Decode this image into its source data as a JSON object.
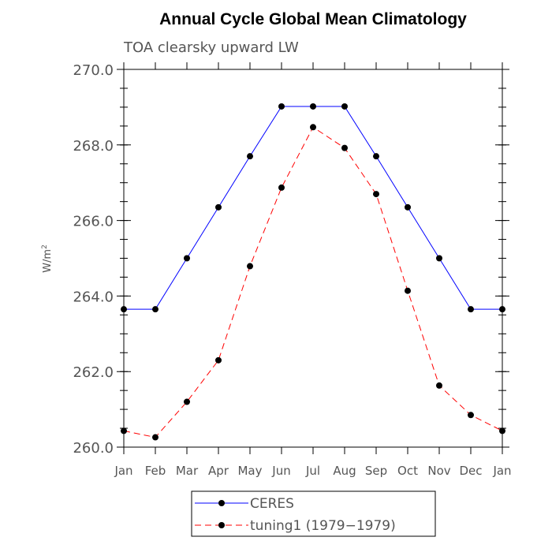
{
  "chart_data": {
    "type": "line",
    "title": "Annual Cycle Global Mean Climatology",
    "subtitle": "TOA clearsky upward LW",
    "ylabel": "W/m",
    "ylabel_sup": "2",
    "xlabel": "",
    "categories": [
      "Jan",
      "Feb",
      "Mar",
      "Apr",
      "May",
      "Jun",
      "Jul",
      "Aug",
      "Sep",
      "Oct",
      "Nov",
      "Dec",
      "Jan"
    ],
    "ylim": [
      260.0,
      270.0
    ],
    "yticks": [
      260.0,
      262.0,
      264.0,
      266.0,
      268.0,
      270.0
    ],
    "ytick_labels": [
      "260.0",
      "262.0",
      "264.0",
      "266.0",
      "268.0",
      "270.0"
    ],
    "series": [
      {
        "name": "CERES",
        "color": "#0000ff",
        "linestyle": "solid",
        "marker": "filled-circle",
        "values": [
          263.65,
          263.65,
          265.0,
          266.35,
          267.7,
          269.02,
          269.02,
          269.02,
          267.7,
          266.35,
          265.0,
          263.65,
          263.65
        ]
      },
      {
        "name": "tuning1 (1979−1979)",
        "color": "#ff0000",
        "linestyle": "dashed",
        "marker": "filled-circle",
        "values": [
          260.43,
          260.26,
          261.2,
          262.3,
          264.79,
          266.87,
          268.47,
          267.92,
          266.7,
          264.14,
          261.63,
          260.85,
          260.43
        ]
      }
    ],
    "grid": false,
    "legend_position": "bottom-center"
  }
}
